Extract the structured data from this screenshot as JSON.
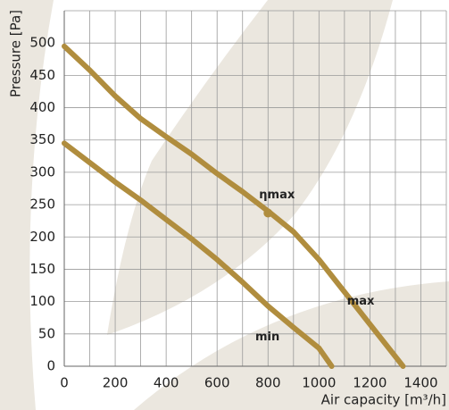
{
  "chart_data": {
    "type": "line",
    "y_label": "Pressure [Pa]",
    "x_label": "Air capacity [m³/h]",
    "xlim": [
      0,
      1500
    ],
    "ylim": [
      0,
      550
    ],
    "xticks": [
      0,
      200,
      400,
      600,
      800,
      1000,
      1200,
      1400
    ],
    "x_minor_ticks": [
      100,
      300,
      500,
      700,
      900,
      1100,
      1300,
      1500
    ],
    "yticks": [
      0,
      50,
      100,
      150,
      200,
      250,
      300,
      350,
      400,
      450,
      500,
      550
    ],
    "ytick_labels_shown": [
      0,
      50,
      100,
      150,
      200,
      250,
      300,
      350,
      400,
      450,
      500
    ],
    "grid": true,
    "series": [
      {
        "name": "max",
        "color": "#b08d3e",
        "x": [
          0,
          100,
          200,
          300,
          400,
          500,
          600,
          700,
          800,
          900,
          1000,
          1100,
          1200,
          1330
        ],
        "values": [
          495,
          458,
          418,
          383,
          355,
          328,
          298,
          270,
          240,
          208,
          165,
          115,
          65,
          0
        ],
        "label_at": [
          1110,
          100
        ]
      },
      {
        "name": "min",
        "color": "#b08d3e",
        "x": [
          0,
          100,
          200,
          300,
          400,
          500,
          600,
          700,
          800,
          900,
          1000,
          1050
        ],
        "values": [
          345,
          315,
          285,
          257,
          227,
          197,
          165,
          130,
          93,
          60,
          28,
          0
        ],
        "label_at": [
          750,
          45
        ]
      }
    ],
    "marker": {
      "label": "ηmax",
      "x": 800,
      "y": 237
    }
  }
}
